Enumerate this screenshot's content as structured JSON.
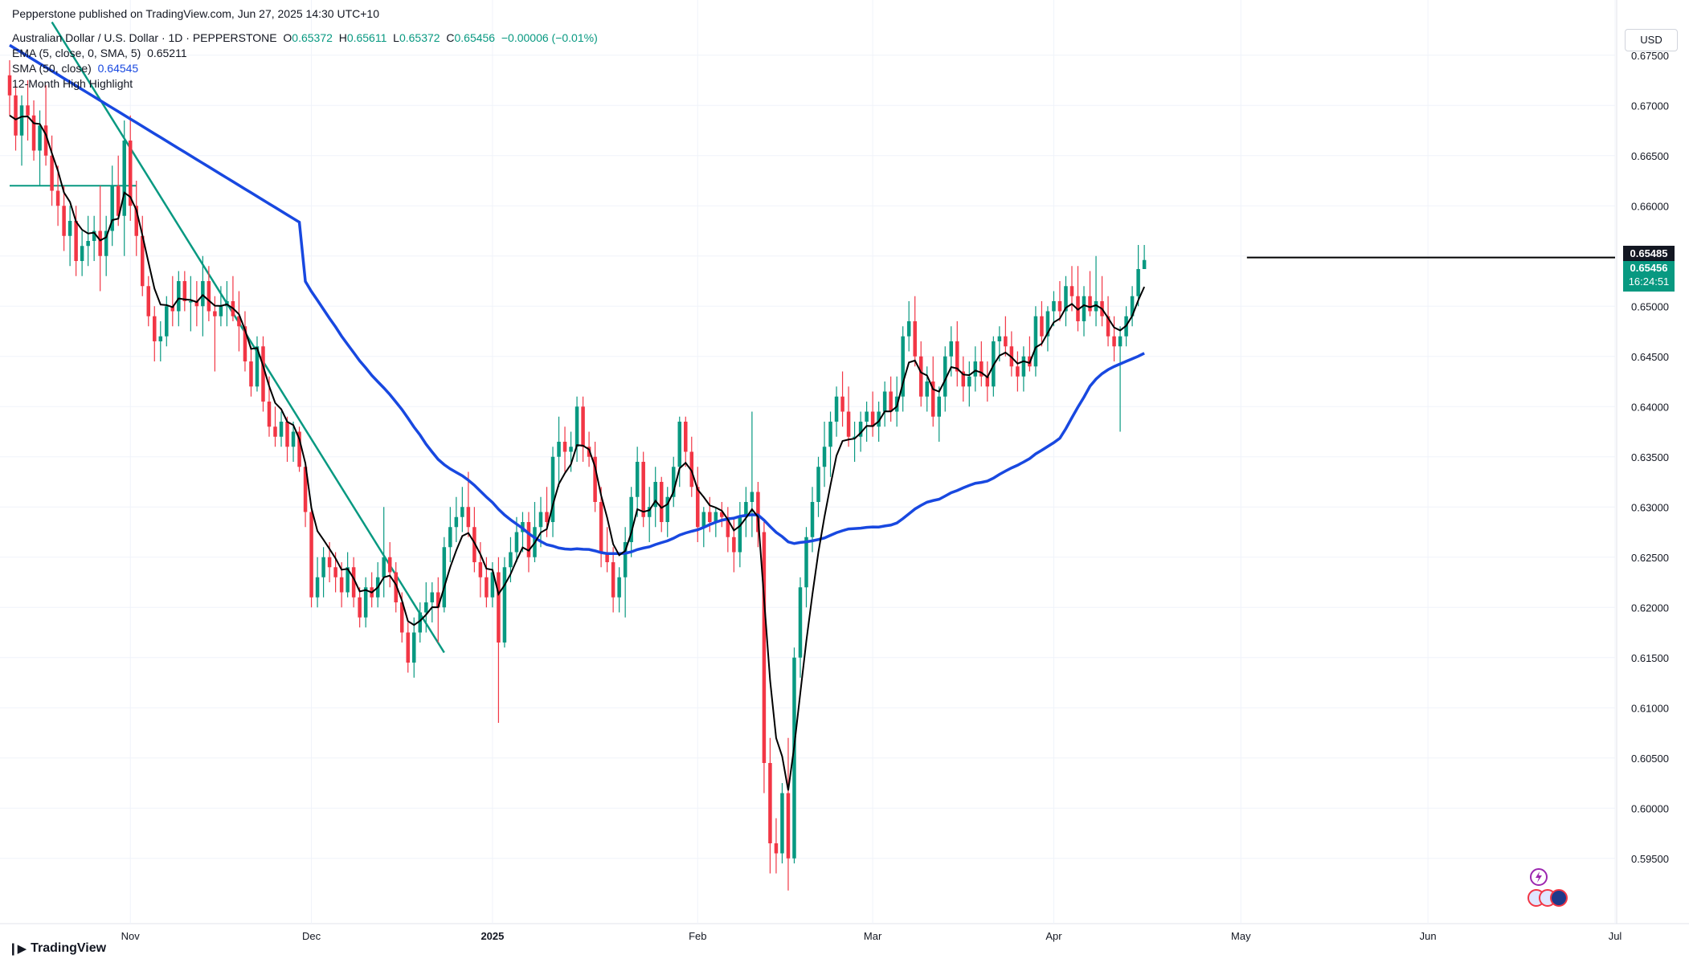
{
  "header": {
    "published": "Pepperstone published on TradingView.com, Jun 27, 2025 14:30 UTC+10",
    "symbol_title": "Australian Dollar / U.S. Dollar · 1D · PEPPERSTONE",
    "ohlc": {
      "o_label": "O",
      "o": "0.65372",
      "h_label": "H",
      "h": "0.65611",
      "l_label": "L",
      "l": "0.65372",
      "c_label": "C",
      "c": "0.65456",
      "change": "−0.00006 (−0.01%)"
    },
    "ema_label": "EMA (5, close, 0, SMA, 5)",
    "ema_value": "0.65211",
    "sma_label": "SMA (50, close)",
    "sma_value": "0.64545",
    "highlight_label": "12-Month High Highlight"
  },
  "currency_button": "USD",
  "price_badges": {
    "high_level": "0.65485",
    "last_price": "0.65456",
    "countdown": "16:24:51"
  },
  "footer": {
    "brand": "TradingView"
  },
  "colors": {
    "up": "#089981",
    "down": "#f23645",
    "ema": "#000000",
    "sma": "#1848e0",
    "trendline": "#089981",
    "resistance": "#000000",
    "grid": "#f0f3fa"
  },
  "chart_data": {
    "type": "candlestick",
    "title": "Australian Dollar / U.S. Dollar · 1D · PEPPERSTONE",
    "y_axis": {
      "ticks": [
        "0.67500",
        "0.67000",
        "0.66500",
        "0.66000",
        "0.65500",
        "0.65000",
        "0.64500",
        "0.64000",
        "0.63500",
        "0.63000",
        "0.62500",
        "0.62000",
        "0.61500",
        "0.61000",
        "0.60500",
        "0.60000",
        "0.59500"
      ],
      "ylim": [
        0.5905,
        0.6765
      ]
    },
    "x_axis": {
      "ticks": [
        "Nov",
        "Dec",
        "2025",
        "Feb",
        "Mar",
        "Apr",
        "May",
        "Jun",
        "Jul"
      ],
      "tick_positions_bar_index": [
        20,
        50,
        80,
        114,
        143,
        173,
        204,
        235,
        266
      ]
    },
    "bars_total_span": [
      0,
      266
    ],
    "ohlc": [
      [
        0.673,
        0.6745,
        0.669,
        0.671
      ],
      [
        0.671,
        0.672,
        0.6655,
        0.667
      ],
      [
        0.667,
        0.671,
        0.664,
        0.67
      ],
      [
        0.67,
        0.6725,
        0.6665,
        0.669
      ],
      [
        0.669,
        0.6705,
        0.6645,
        0.6655
      ],
      [
        0.6655,
        0.6695,
        0.662,
        0.668
      ],
      [
        0.668,
        0.672,
        0.664,
        0.665
      ],
      [
        0.665,
        0.667,
        0.66,
        0.6615
      ],
      [
        0.6615,
        0.664,
        0.658,
        0.66
      ],
      [
        0.66,
        0.662,
        0.6555,
        0.657
      ],
      [
        0.657,
        0.66,
        0.654,
        0.6585
      ],
      [
        0.6585,
        0.66,
        0.653,
        0.6545
      ],
      [
        0.6545,
        0.6575,
        0.653,
        0.656
      ],
      [
        0.656,
        0.659,
        0.654,
        0.6565
      ],
      [
        0.6565,
        0.659,
        0.6545,
        0.6575
      ],
      [
        0.6575,
        0.662,
        0.6515,
        0.655
      ],
      [
        0.655,
        0.659,
        0.653,
        0.6575
      ],
      [
        0.6575,
        0.664,
        0.656,
        0.662
      ],
      [
        0.662,
        0.665,
        0.658,
        0.659
      ],
      [
        0.659,
        0.6685,
        0.655,
        0.6665
      ],
      [
        0.6665,
        0.669,
        0.6585,
        0.66
      ],
      [
        0.66,
        0.6625,
        0.655,
        0.657
      ],
      [
        0.657,
        0.659,
        0.651,
        0.652
      ],
      [
        0.652,
        0.653,
        0.648,
        0.649
      ],
      [
        0.649,
        0.65,
        0.6445,
        0.6465
      ],
      [
        0.6465,
        0.6485,
        0.6445,
        0.647
      ],
      [
        0.647,
        0.651,
        0.646,
        0.65
      ],
      [
        0.65,
        0.653,
        0.648,
        0.6495
      ],
      [
        0.6495,
        0.6535,
        0.648,
        0.6525
      ],
      [
        0.6525,
        0.6535,
        0.6495,
        0.6505
      ],
      [
        0.6505,
        0.653,
        0.6475,
        0.6505
      ],
      [
        0.6505,
        0.6525,
        0.648,
        0.65
      ],
      [
        0.65,
        0.655,
        0.647,
        0.6525
      ],
      [
        0.6525,
        0.654,
        0.6485,
        0.6495
      ],
      [
        0.6495,
        0.651,
        0.6435,
        0.649
      ],
      [
        0.649,
        0.652,
        0.648,
        0.65
      ],
      [
        0.65,
        0.6525,
        0.648,
        0.6505
      ],
      [
        0.6505,
        0.653,
        0.6485,
        0.649
      ],
      [
        0.649,
        0.6515,
        0.6455,
        0.648
      ],
      [
        0.648,
        0.6495,
        0.6435,
        0.6445
      ],
      [
        0.6445,
        0.646,
        0.641,
        0.642
      ],
      [
        0.642,
        0.647,
        0.6415,
        0.646
      ],
      [
        0.646,
        0.647,
        0.6395,
        0.6405
      ],
      [
        0.6405,
        0.643,
        0.637,
        0.638
      ],
      [
        0.638,
        0.64,
        0.636,
        0.637
      ],
      [
        0.637,
        0.6395,
        0.636,
        0.6385
      ],
      [
        0.6385,
        0.639,
        0.6345,
        0.636
      ],
      [
        0.636,
        0.6385,
        0.6345,
        0.6375
      ],
      [
        0.6375,
        0.638,
        0.6335,
        0.634
      ],
      [
        0.634,
        0.6345,
        0.628,
        0.6295
      ],
      [
        0.6295,
        0.63,
        0.62,
        0.621
      ],
      [
        0.621,
        0.625,
        0.62,
        0.623
      ],
      [
        0.623,
        0.626,
        0.621,
        0.625
      ],
      [
        0.625,
        0.6265,
        0.6225,
        0.624
      ],
      [
        0.624,
        0.6255,
        0.6215,
        0.623
      ],
      [
        0.623,
        0.6245,
        0.62,
        0.6215
      ],
      [
        0.6215,
        0.6255,
        0.621,
        0.624
      ],
      [
        0.624,
        0.625,
        0.62,
        0.621
      ],
      [
        0.621,
        0.622,
        0.618,
        0.619
      ],
      [
        0.619,
        0.623,
        0.618,
        0.622
      ],
      [
        0.622,
        0.6235,
        0.62,
        0.621
      ],
      [
        0.621,
        0.6245,
        0.62,
        0.623
      ],
      [
        0.623,
        0.63,
        0.621,
        0.625
      ],
      [
        0.625,
        0.6265,
        0.622,
        0.6235
      ],
      [
        0.6235,
        0.6245,
        0.6195,
        0.6205
      ],
      [
        0.6205,
        0.6215,
        0.6165,
        0.6175
      ],
      [
        0.6175,
        0.6185,
        0.6135,
        0.6145
      ],
      [
        0.6145,
        0.619,
        0.613,
        0.6175
      ],
      [
        0.6175,
        0.6205,
        0.6165,
        0.6195
      ],
      [
        0.6195,
        0.6225,
        0.6175,
        0.6205
      ],
      [
        0.6205,
        0.6225,
        0.6185,
        0.6215
      ],
      [
        0.6215,
        0.623,
        0.6165,
        0.62
      ],
      [
        0.62,
        0.627,
        0.6195,
        0.626
      ],
      [
        0.626,
        0.63,
        0.6245,
        0.628
      ],
      [
        0.628,
        0.631,
        0.6265,
        0.629
      ],
      [
        0.629,
        0.632,
        0.6275,
        0.63
      ],
      [
        0.63,
        0.6335,
        0.627,
        0.628
      ],
      [
        0.628,
        0.63,
        0.6235,
        0.6245
      ],
      [
        0.6245,
        0.6265,
        0.621,
        0.623
      ],
      [
        0.623,
        0.625,
        0.62,
        0.621
      ],
      [
        0.621,
        0.6245,
        0.62,
        0.6235
      ],
      [
        0.6235,
        0.625,
        0.6085,
        0.6165
      ],
      [
        0.6165,
        0.625,
        0.616,
        0.624
      ],
      [
        0.624,
        0.627,
        0.6225,
        0.6255
      ],
      [
        0.6255,
        0.629,
        0.6245,
        0.6275
      ],
      [
        0.6275,
        0.6295,
        0.6255,
        0.6285
      ],
      [
        0.6285,
        0.6295,
        0.6235,
        0.625
      ],
      [
        0.625,
        0.6305,
        0.6245,
        0.628
      ],
      [
        0.628,
        0.631,
        0.626,
        0.6295
      ],
      [
        0.6295,
        0.632,
        0.627,
        0.6285
      ],
      [
        0.6285,
        0.636,
        0.627,
        0.635
      ],
      [
        0.635,
        0.639,
        0.632,
        0.6365
      ],
      [
        0.6365,
        0.638,
        0.6335,
        0.6355
      ],
      [
        0.6355,
        0.6375,
        0.6335,
        0.636
      ],
      [
        0.636,
        0.641,
        0.6345,
        0.64
      ],
      [
        0.64,
        0.641,
        0.6345,
        0.636
      ],
      [
        0.636,
        0.6375,
        0.634,
        0.635
      ],
      [
        0.635,
        0.6365,
        0.6295,
        0.6305
      ],
      [
        0.6305,
        0.632,
        0.624,
        0.6255
      ],
      [
        0.6255,
        0.628,
        0.6235,
        0.6245
      ],
      [
        0.6245,
        0.626,
        0.6195,
        0.621
      ],
      [
        0.621,
        0.624,
        0.6195,
        0.623
      ],
      [
        0.623,
        0.628,
        0.619,
        0.6265
      ],
      [
        0.6265,
        0.632,
        0.625,
        0.631
      ],
      [
        0.631,
        0.636,
        0.629,
        0.6345
      ],
      [
        0.6345,
        0.6355,
        0.628,
        0.629
      ],
      [
        0.629,
        0.632,
        0.6265,
        0.63
      ],
      [
        0.63,
        0.634,
        0.628,
        0.6325
      ],
      [
        0.6325,
        0.633,
        0.6275,
        0.6285
      ],
      [
        0.6285,
        0.632,
        0.627,
        0.631
      ],
      [
        0.631,
        0.635,
        0.63,
        0.634
      ],
      [
        0.634,
        0.639,
        0.632,
        0.6385
      ],
      [
        0.6385,
        0.639,
        0.634,
        0.6355
      ],
      [
        0.6355,
        0.637,
        0.631,
        0.632
      ],
      [
        0.632,
        0.634,
        0.6265,
        0.628
      ],
      [
        0.628,
        0.63,
        0.626,
        0.6295
      ],
      [
        0.6295,
        0.631,
        0.6275,
        0.6285
      ],
      [
        0.6285,
        0.63,
        0.627,
        0.6295
      ],
      [
        0.6295,
        0.6305,
        0.628,
        0.629
      ],
      [
        0.629,
        0.63,
        0.6255,
        0.627
      ],
      [
        0.627,
        0.629,
        0.6235,
        0.6255
      ],
      [
        0.6255,
        0.6305,
        0.624,
        0.629
      ],
      [
        0.629,
        0.632,
        0.627,
        0.6305
      ],
      [
        0.6305,
        0.6395,
        0.627,
        0.6315
      ],
      [
        0.6315,
        0.6325,
        0.626,
        0.6275
      ],
      [
        0.6275,
        0.6285,
        0.6015,
        0.6045
      ],
      [
        0.6045,
        0.607,
        0.5935,
        0.5965
      ],
      [
        0.5965,
        0.599,
        0.5935,
        0.5955
      ],
      [
        0.5955,
        0.6025,
        0.5945,
        0.6015
      ],
      [
        0.6015,
        0.607,
        0.5918,
        0.595
      ],
      [
        0.595,
        0.616,
        0.5945,
        0.615
      ],
      [
        0.615,
        0.623,
        0.613,
        0.622
      ],
      [
        0.622,
        0.628,
        0.62,
        0.627
      ],
      [
        0.627,
        0.632,
        0.6255,
        0.6305
      ],
      [
        0.6305,
        0.635,
        0.629,
        0.634
      ],
      [
        0.634,
        0.6385,
        0.632,
        0.636
      ],
      [
        0.636,
        0.6395,
        0.633,
        0.6385
      ],
      [
        0.6385,
        0.642,
        0.637,
        0.641
      ],
      [
        0.641,
        0.6435,
        0.638,
        0.6395
      ],
      [
        0.6395,
        0.642,
        0.636,
        0.637
      ],
      [
        0.637,
        0.6385,
        0.6345,
        0.637
      ],
      [
        0.637,
        0.6395,
        0.6355,
        0.6385
      ],
      [
        0.6385,
        0.6405,
        0.6365,
        0.6395
      ],
      [
        0.6395,
        0.6415,
        0.637,
        0.638
      ],
      [
        0.638,
        0.6405,
        0.6365,
        0.6395
      ],
      [
        0.6395,
        0.6425,
        0.638,
        0.6415
      ],
      [
        0.6415,
        0.643,
        0.6385,
        0.6395
      ],
      [
        0.6395,
        0.643,
        0.638,
        0.641
      ],
      [
        0.641,
        0.648,
        0.6395,
        0.647
      ],
      [
        0.647,
        0.6505,
        0.6455,
        0.6485
      ],
      [
        0.6485,
        0.651,
        0.644,
        0.645
      ],
      [
        0.645,
        0.6465,
        0.64,
        0.641
      ],
      [
        0.641,
        0.644,
        0.6395,
        0.6425
      ],
      [
        0.6425,
        0.645,
        0.638,
        0.639
      ],
      [
        0.639,
        0.642,
        0.6365,
        0.641
      ],
      [
        0.641,
        0.646,
        0.6395,
        0.645
      ],
      [
        0.645,
        0.648,
        0.643,
        0.6465
      ],
      [
        0.6465,
        0.6485,
        0.642,
        0.6435
      ],
      [
        0.6435,
        0.645,
        0.6405,
        0.642
      ],
      [
        0.642,
        0.6445,
        0.64,
        0.643
      ],
      [
        0.643,
        0.646,
        0.6415,
        0.6445
      ],
      [
        0.6445,
        0.6465,
        0.642,
        0.643
      ],
      [
        0.643,
        0.6445,
        0.6405,
        0.642
      ],
      [
        0.642,
        0.647,
        0.641,
        0.6465
      ],
      [
        0.6465,
        0.648,
        0.6445,
        0.647
      ],
      [
        0.647,
        0.649,
        0.645,
        0.646
      ],
      [
        0.646,
        0.6475,
        0.643,
        0.644
      ],
      [
        0.644,
        0.6455,
        0.6415,
        0.643
      ],
      [
        0.643,
        0.646,
        0.6415,
        0.645
      ],
      [
        0.645,
        0.647,
        0.6435,
        0.644
      ],
      [
        0.644,
        0.65,
        0.643,
        0.649
      ],
      [
        0.649,
        0.6505,
        0.646,
        0.647
      ],
      [
        0.647,
        0.65,
        0.6455,
        0.6495
      ],
      [
        0.6495,
        0.6515,
        0.648,
        0.6505
      ],
      [
        0.6505,
        0.6525,
        0.6485,
        0.6495
      ],
      [
        0.6495,
        0.653,
        0.648,
        0.652
      ],
      [
        0.652,
        0.654,
        0.6495,
        0.651
      ],
      [
        0.651,
        0.654,
        0.6475,
        0.6485
      ],
      [
        0.6485,
        0.652,
        0.647,
        0.651
      ],
      [
        0.651,
        0.6535,
        0.649,
        0.6495
      ],
      [
        0.6495,
        0.655,
        0.648,
        0.6505
      ],
      [
        0.6505,
        0.653,
        0.648,
        0.649
      ],
      [
        0.649,
        0.651,
        0.646,
        0.647
      ],
      [
        0.647,
        0.649,
        0.6445,
        0.646
      ],
      [
        0.646,
        0.648,
        0.6375,
        0.647
      ],
      [
        0.647,
        0.65,
        0.646,
        0.649
      ],
      [
        0.649,
        0.652,
        0.648,
        0.651
      ],
      [
        0.651,
        0.6561,
        0.65,
        0.6537
      ],
      [
        0.6537,
        0.6561,
        0.6537,
        0.6546
      ]
    ],
    "ema5_label": "EMA (5, close, 0, SMA, 5)",
    "sma50_label": "SMA (50, close)",
    "resistance_level": 0.65485,
    "twelve_month_high_level": 0.662,
    "last_price": 0.65456
  }
}
